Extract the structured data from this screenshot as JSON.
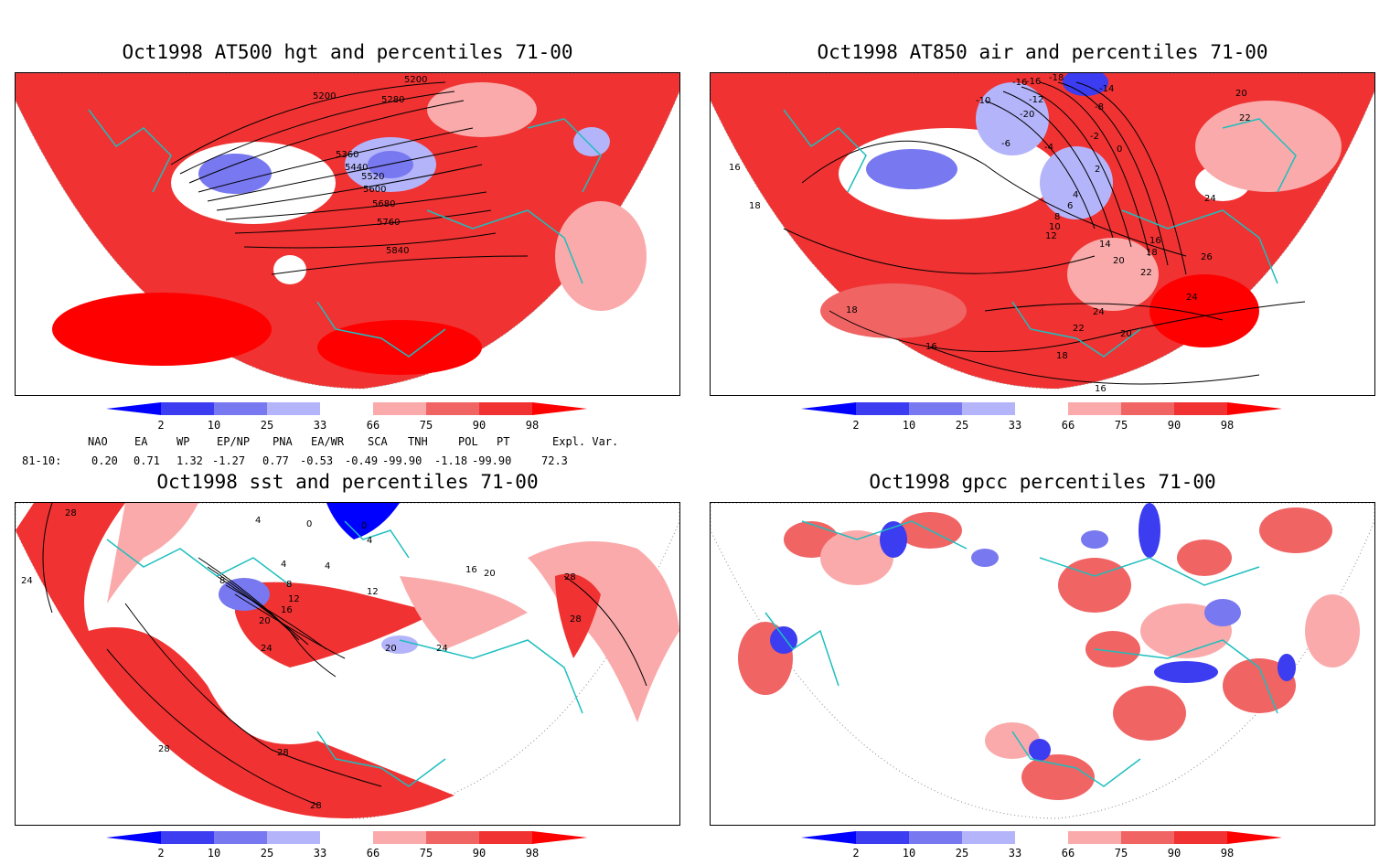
{
  "panels": [
    {
      "title": "Oct1998 AT500 hgt and percentiles 71-00",
      "contour_labels": [
        "5200",
        "5280",
        "5200",
        "5360",
        "5440",
        "5520",
        "5600",
        "5680",
        "5760",
        "5840"
      ]
    },
    {
      "title": "Oct1998 AT850 air and percentiles 71-00",
      "contour_labels": [
        "-16",
        "-18",
        "-14",
        "-10",
        "-16",
        "-12",
        "-20",
        "-8",
        "-6",
        "-4",
        "-2",
        "0",
        "2",
        "4",
        "6",
        "8",
        "10",
        "12",
        "14",
        "16",
        "18",
        "20",
        "22",
        "24",
        "16",
        "18",
        "20",
        "22",
        "24",
        "26",
        "18",
        "16",
        "18",
        "20",
        "22",
        "24",
        "16"
      ]
    },
    {
      "title": "Oct1998 sst and percentiles 71-00",
      "contour_labels": [
        "28",
        "24",
        "4",
        "0",
        "0",
        "4",
        "8",
        "4",
        "8",
        "4",
        "12",
        "16",
        "20",
        "12",
        "16",
        "20",
        "24",
        "20",
        "24",
        "28",
        "28",
        "28",
        "28",
        "28"
      ]
    },
    {
      "title": "Oct1998 gpcc percentiles 71-00",
      "contour_labels": []
    }
  ],
  "colorbar": {
    "tick_labels": [
      "2",
      "10",
      "25",
      "33",
      "66",
      "75",
      "90",
      "98"
    ],
    "colors": [
      "#0000ff",
      "#3c3cf0",
      "#7878f0",
      "#b4b4fa",
      "#ffffff",
      "#faaaaa",
      "#f06464",
      "#f03232",
      "#ff0000"
    ]
  },
  "indices": {
    "headers": [
      "NAO",
      "EA",
      "WP",
      "EP/NP",
      "PNA",
      "EA/WR",
      "SCA",
      "TNH",
      "POL",
      "PT",
      "Expl. Var."
    ],
    "row_label": "81-10:",
    "values": [
      "0.20",
      "0.71",
      "1.32",
      "-1.27",
      "0.77",
      "-0.53",
      "-0.49",
      "-99.90",
      "-1.18",
      "-99.90",
      "72.3"
    ]
  }
}
